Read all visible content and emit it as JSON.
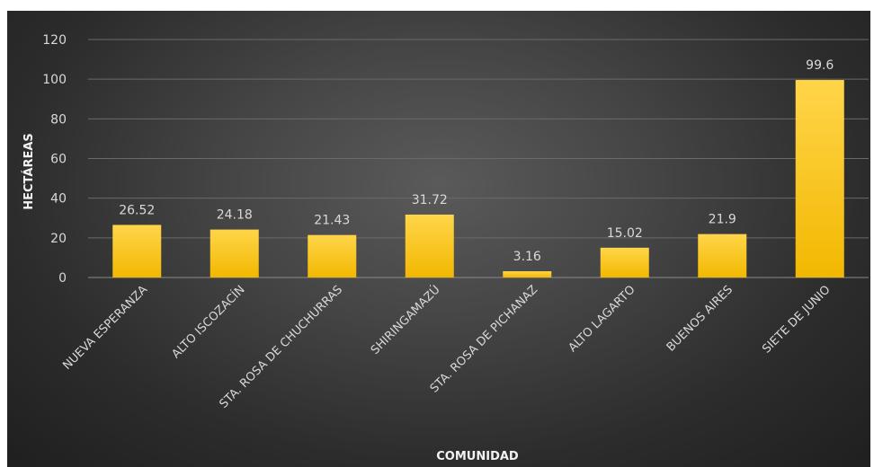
{
  "chart_data": {
    "type": "bar",
    "title": "",
    "xlabel": "COMUNIDAD",
    "ylabel": "HECTÁREAS",
    "categories": [
      "NUEVA ESPERANZA",
      "ALTO ISCOZACÍN",
      "STA. ROSA DE CHUCHURRAS",
      "SHIRINGAMAZÚ",
      "STA. ROSA DE PICHANAZ",
      "ALTO LAGARTO",
      "BUENOS AIRES",
      "SIETE DE JUNIO"
    ],
    "values": [
      26.52,
      24.18,
      21.43,
      31.72,
      3.16,
      15.02,
      21.9,
      99.6
    ],
    "data_labels": [
      "26.52",
      "24.18",
      "21.43",
      "31.72",
      "3.16",
      "15.02",
      "21.9",
      "99.6"
    ],
    "y_ticks": [
      "0",
      "20",
      "40",
      "60",
      "80",
      "100",
      "120"
    ],
    "ylim": [
      0,
      120
    ],
    "grid": true,
    "legend": "none",
    "colors": {
      "bar_top": "#ffd54a",
      "bar_bottom": "#f2b800",
      "background": "#3c3c3c"
    }
  }
}
